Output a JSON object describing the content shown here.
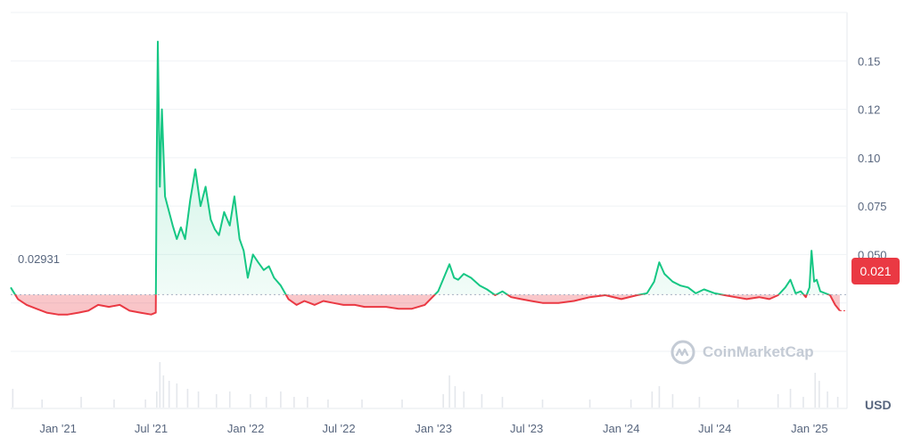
{
  "chart_data": {
    "type": "line",
    "x": [
      "2020-10-01",
      "2020-10-15",
      "2020-11-01",
      "2020-11-20",
      "2020-12-10",
      "2021-01-01",
      "2021-01-20",
      "2021-02-10",
      "2021-03-01",
      "2021-03-20",
      "2021-04-10",
      "2021-05-01",
      "2021-05-20",
      "2021-06-10",
      "2021-07-01",
      "2021-07-10",
      "2021-07-12",
      "2021-07-14",
      "2021-07-18",
      "2021-07-22",
      "2021-07-28",
      "2021-08-05",
      "2021-08-12",
      "2021-08-20",
      "2021-08-28",
      "2021-09-05",
      "2021-09-15",
      "2021-09-25",
      "2021-10-05",
      "2021-10-15",
      "2021-10-25",
      "2021-11-02",
      "2021-11-10",
      "2021-11-20",
      "2021-12-01",
      "2021-12-10",
      "2021-12-20",
      "2021-12-28",
      "2022-01-05",
      "2022-01-15",
      "2022-01-25",
      "2022-02-05",
      "2022-02-15",
      "2022-02-25",
      "2022-03-10",
      "2022-03-25",
      "2022-04-10",
      "2022-04-25",
      "2022-05-05",
      "2022-05-15",
      "2022-06-01",
      "2022-06-20",
      "2022-07-10",
      "2022-08-01",
      "2022-08-20",
      "2022-09-10",
      "2022-10-01",
      "2022-10-25",
      "2022-11-20",
      "2022-12-15",
      "2023-01-10",
      "2023-02-01",
      "2023-02-10",
      "2023-02-18",
      "2023-03-01",
      "2023-03-15",
      "2023-04-01",
      "2023-04-15",
      "2023-05-01",
      "2023-05-15",
      "2023-06-01",
      "2023-06-20",
      "2023-07-10",
      "2023-08-01",
      "2023-09-01",
      "2023-10-01",
      "2023-11-01",
      "2023-12-01",
      "2024-01-01",
      "2024-02-01",
      "2024-02-20",
      "2024-03-05",
      "2024-03-15",
      "2024-03-25",
      "2024-04-10",
      "2024-04-25",
      "2024-05-10",
      "2024-05-25",
      "2024-06-10",
      "2024-07-01",
      "2024-07-20",
      "2024-08-10",
      "2024-09-01",
      "2024-09-25",
      "2024-10-15",
      "2024-11-01",
      "2024-11-15",
      "2024-11-25",
      "2024-12-05",
      "2024-12-15",
      "2024-12-25",
      "2025-01-01",
      "2025-01-05",
      "2025-01-10",
      "2025-01-15",
      "2025-01-22",
      "2025-02-01",
      "2025-02-10",
      "2025-02-20",
      "2025-03-01"
    ],
    "values": [
      0.033,
      0.027,
      0.024,
      0.022,
      0.02,
      0.019,
      0.019,
      0.02,
      0.021,
      0.024,
      0.023,
      0.024,
      0.021,
      0.02,
      0.019,
      0.02,
      0.1,
      0.16,
      0.085,
      0.125,
      0.08,
      0.072,
      0.065,
      0.058,
      0.064,
      0.058,
      0.078,
      0.094,
      0.075,
      0.085,
      0.068,
      0.063,
      0.06,
      0.072,
      0.065,
      0.08,
      0.058,
      0.052,
      0.038,
      0.05,
      0.046,
      0.042,
      0.044,
      0.038,
      0.034,
      0.027,
      0.024,
      0.026,
      0.025,
      0.024,
      0.026,
      0.025,
      0.024,
      0.024,
      0.023,
      0.023,
      0.023,
      0.022,
      0.022,
      0.024,
      0.031,
      0.045,
      0.038,
      0.037,
      0.04,
      0.038,
      0.034,
      0.032,
      0.029,
      0.031,
      0.028,
      0.027,
      0.026,
      0.025,
      0.025,
      0.026,
      0.028,
      0.029,
      0.027,
      0.029,
      0.03,
      0.036,
      0.046,
      0.04,
      0.036,
      0.034,
      0.033,
      0.03,
      0.032,
      0.03,
      0.029,
      0.028,
      0.027,
      0.028,
      0.027,
      0.029,
      0.033,
      0.037,
      0.03,
      0.031,
      0.028,
      0.033,
      0.052,
      0.036,
      0.037,
      0.031,
      0.03,
      0.029,
      0.024,
      0.021
    ],
    "baseline": 0.02931,
    "baseline_label": "0.02931",
    "current_price": 0.021,
    "current_price_label": "0.021",
    "y_ticks": [
      0.15,
      0.125,
      0.1,
      0.075,
      0.05
    ],
    "y_tick_labels": [
      "0.15",
      "0.12",
      "0.10",
      "0.075",
      "0.050"
    ],
    "x_ticks": [
      "2021-01-01",
      "2021-07-01",
      "2022-01-01",
      "2022-07-01",
      "2023-01-01",
      "2023-07-01",
      "2024-01-01",
      "2024-07-01",
      "2025-01-01"
    ],
    "x_tick_labels": [
      "Jan '21",
      "Jul '21",
      "Jan '22",
      "Jul '22",
      "Jan '23",
      "Jul '23",
      "Jan '24",
      "Jul '24",
      "Jan '25"
    ],
    "x_range": [
      "2020-10-01",
      "2025-03-15"
    ],
    "ylim": [
      0,
      0.175
    ],
    "volume_ticks": [
      "2020-10-05",
      "2020-12-01",
      "2021-02-15",
      "2021-04-20",
      "2021-06-20",
      "2021-07-12",
      "2021-07-18",
      "2021-07-25",
      "2021-08-05",
      "2021-08-20",
      "2021-09-10",
      "2021-10-01",
      "2021-11-05",
      "2021-12-01",
      "2022-01-10",
      "2022-02-10",
      "2022-03-10",
      "2022-04-05",
      "2022-05-01",
      "2022-06-10",
      "2022-08-15",
      "2022-11-01",
      "2023-01-20",
      "2023-02-01",
      "2023-02-12",
      "2023-03-01",
      "2023-04-05",
      "2023-05-15",
      "2023-08-01",
      "2023-11-01",
      "2024-01-20",
      "2024-03-01",
      "2024-03-15",
      "2024-04-10",
      "2024-06-01",
      "2024-08-15",
      "2024-11-01",
      "2024-11-25",
      "2024-12-20",
      "2025-01-12",
      "2025-01-20",
      "2025-02-05",
      "2025-02-25"
    ],
    "volume_values": [
      0.35,
      0.15,
      0.2,
      0.15,
      0.15,
      0.3,
      0.85,
      0.6,
      0.5,
      0.45,
      0.35,
      0.3,
      0.25,
      0.3,
      0.25,
      0.2,
      0.3,
      0.2,
      0.2,
      0.15,
      0.15,
      0.15,
      0.25,
      0.6,
      0.4,
      0.3,
      0.25,
      0.2,
      0.15,
      0.15,
      0.15,
      0.3,
      0.4,
      0.25,
      0.2,
      0.15,
      0.25,
      0.35,
      0.2,
      0.65,
      0.5,
      0.3,
      0.2
    ],
    "up_color": "#16c784",
    "down_color": "#ea3943",
    "grid": true,
    "currency": "USD"
  },
  "watermark": {
    "text": "CoinMarketCap"
  }
}
